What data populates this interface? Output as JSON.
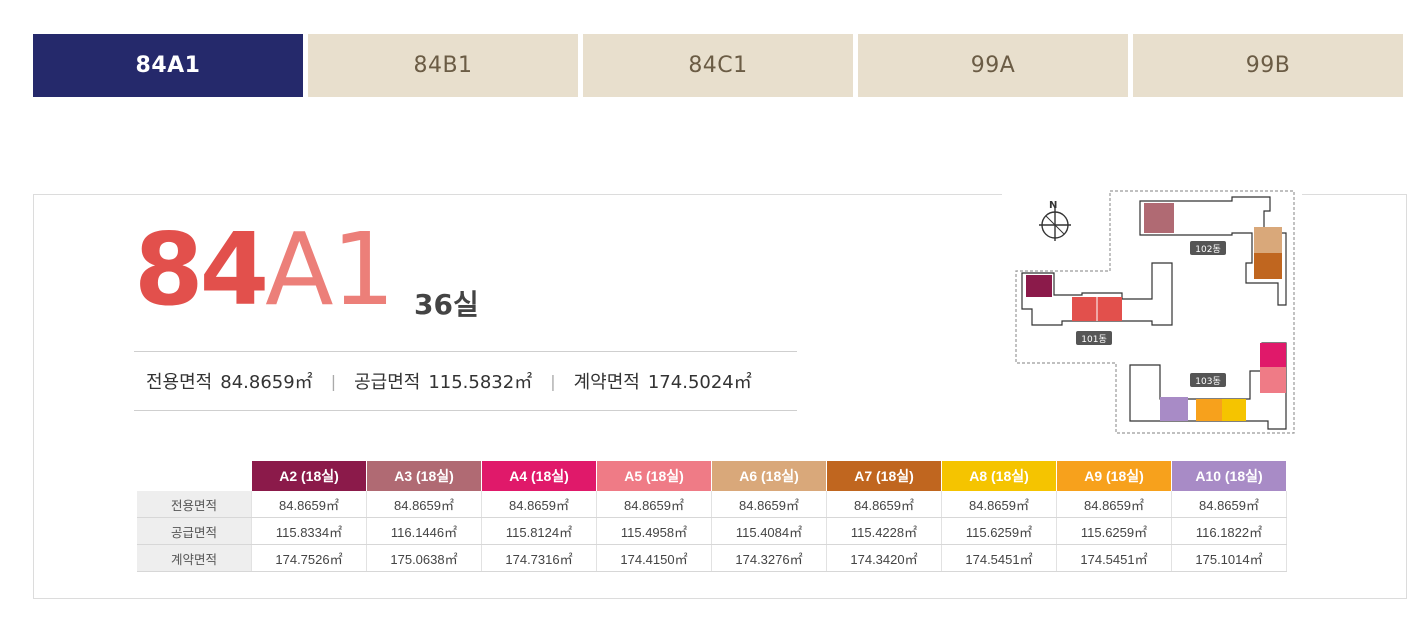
{
  "tabs": [
    {
      "label": "84A1",
      "active": true
    },
    {
      "label": "84B1",
      "active": false
    },
    {
      "label": "84C1",
      "active": false
    },
    {
      "label": "99A",
      "active": false
    },
    {
      "label": "99B",
      "active": false
    }
  ],
  "header": {
    "type_number": "84",
    "type_suffix": "A1",
    "units": "36실"
  },
  "areas": {
    "exclusive_label": "전용면적",
    "exclusive_value": "84.8659㎡",
    "supply_label": "공급면적",
    "supply_value": "115.5832㎡",
    "contract_label": "계약면적",
    "contract_value": "174.5024㎡"
  },
  "table": {
    "columns": [
      {
        "label": "A2 (18실)",
        "color": "#8b1a4a"
      },
      {
        "label": "A3 (18실)",
        "color": "#b06a73"
      },
      {
        "label": "A4 (18실)",
        "color": "#e0196a"
      },
      {
        "label": "A5 (18실)",
        "color": "#ef7b86"
      },
      {
        "label": "A6 (18실)",
        "color": "#d9a87a"
      },
      {
        "label": "A7 (18실)",
        "color": "#c0661f"
      },
      {
        "label": "A8 (18실)",
        "color": "#f5c400"
      },
      {
        "label": "A9 (18실)",
        "color": "#f7a11c"
      },
      {
        "label": "A10 (18실)",
        "color": "#a88bc6"
      }
    ],
    "rows": [
      {
        "label": "전용면적",
        "values": [
          "84.8659㎡",
          "84.8659㎡",
          "84.8659㎡",
          "84.8659㎡",
          "84.8659㎡",
          "84.8659㎡",
          "84.8659㎡",
          "84.8659㎡",
          "84.8659㎡"
        ]
      },
      {
        "label": "공급면적",
        "values": [
          "115.8334㎡",
          "116.1446㎡",
          "115.8124㎡",
          "115.4958㎡",
          "115.4084㎡",
          "115.4228㎡",
          "115.6259㎡",
          "115.6259㎡",
          "116.1822㎡"
        ]
      },
      {
        "label": "계약면적",
        "values": [
          "174.7526㎡",
          "175.0638㎡",
          "174.7316㎡",
          "174.4150㎡",
          "174.3276㎡",
          "174.3420㎡",
          "174.5451㎡",
          "174.5451㎡",
          "175.1014㎡"
        ]
      }
    ]
  },
  "sitemap": {
    "compass": "N",
    "buildings": [
      "102동",
      "101동",
      "103동"
    ]
  }
}
